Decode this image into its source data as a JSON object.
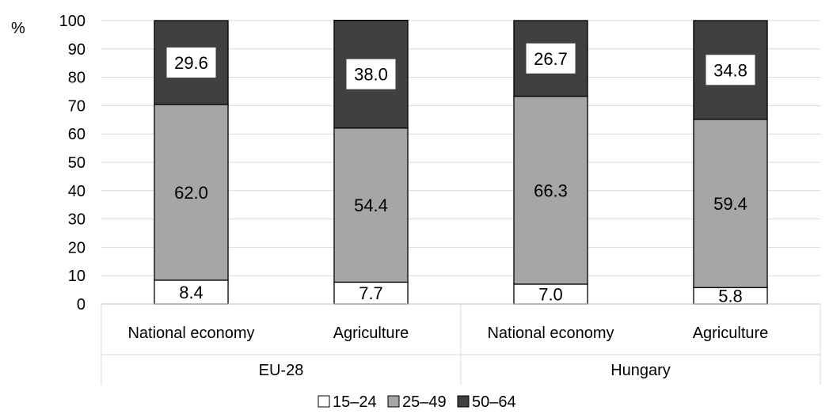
{
  "chart_data": {
    "type": "bar",
    "stacked": true,
    "unit_label": "%",
    "ylim": [
      0,
      100
    ],
    "yticks": [
      0,
      10,
      20,
      30,
      40,
      50,
      60,
      70,
      80,
      90,
      100
    ],
    "grid": true,
    "legend_position": "bottom",
    "groups": [
      {
        "label": "EU-28",
        "categories": [
          "National economy",
          "Agriculture"
        ]
      },
      {
        "label": "Hungary",
        "categories": [
          "National economy",
          "Agriculture"
        ]
      }
    ],
    "series": [
      {
        "name": "15–24",
        "color": "#ffffff",
        "values": [
          8.4,
          7.7,
          7.0,
          5.8
        ],
        "labels": [
          "8.4",
          "7.7",
          "7.0",
          "5.8"
        ]
      },
      {
        "name": "25–49",
        "color": "#a6a6a6",
        "values": [
          62.0,
          54.4,
          66.3,
          59.4
        ],
        "labels": [
          "62.0",
          "54.4",
          "66.3",
          "59.4"
        ]
      },
      {
        "name": "50–64",
        "color": "#404040",
        "values": [
          29.6,
          38.0,
          26.7,
          34.8
        ],
        "labels": [
          "29.6",
          "38.0",
          "26.7",
          "34.8"
        ]
      }
    ]
  }
}
